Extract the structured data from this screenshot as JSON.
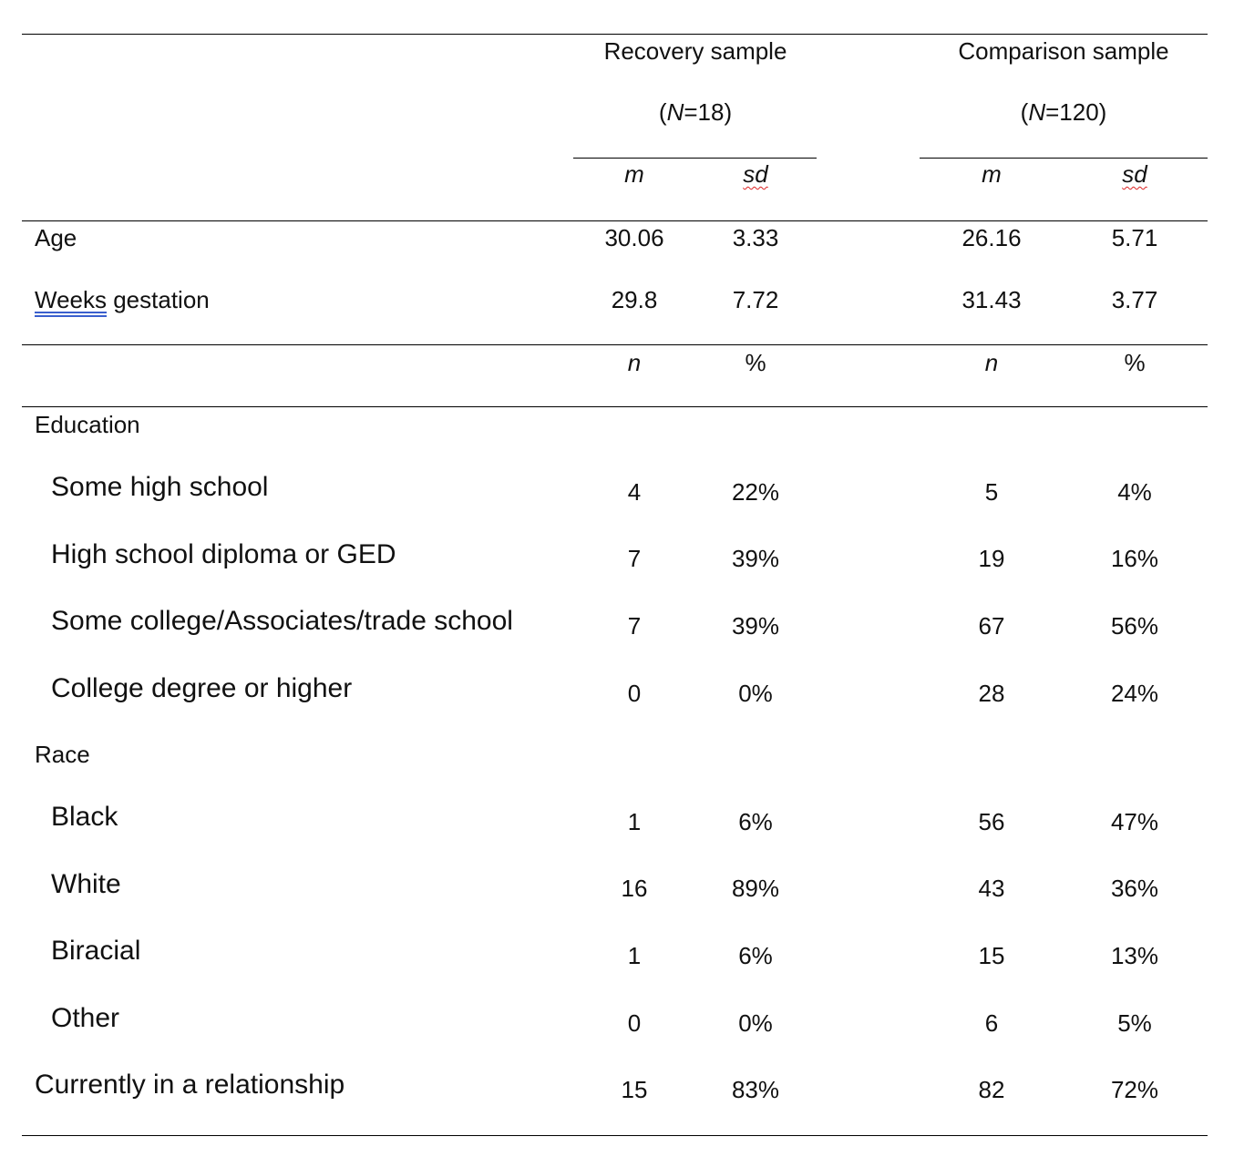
{
  "groups": [
    {
      "name": "Recovery sample",
      "n_label": "(N=18)",
      "n_prefix": "(",
      "n_letter": "N",
      "n_rest": "=18)"
    },
    {
      "name": "Comparison sample",
      "n_label": "(N=120)",
      "n_prefix": "(",
      "n_letter": "N",
      "n_rest": "=120)"
    }
  ],
  "subheaders": {
    "continuous": {
      "mean": "m",
      "sd": "sd"
    },
    "categorical": {
      "count": "n",
      "percent": "%"
    }
  },
  "continuous_rows": [
    {
      "label": "Age",
      "recovery_m": "30.06",
      "recovery_sd": "3.33",
      "comparison_m": "26.16",
      "comparison_sd": "5.71"
    },
    {
      "label_part1": "Weeks",
      "label_part2": " gestation",
      "label": "Weeks gestation",
      "recovery_m": "29.8",
      "recovery_sd": "7.72",
      "comparison_m": "31.43",
      "comparison_sd": "3.77"
    }
  ],
  "sections": [
    {
      "label": "Education",
      "rows": [
        {
          "label": "Some high school",
          "recovery_n": "4",
          "recovery_pct": "22%",
          "comparison_n": "5",
          "comparison_pct": "4%"
        },
        {
          "label": "High school diploma or GED",
          "recovery_n": "7",
          "recovery_pct": "39%",
          "comparison_n": "19",
          "comparison_pct": "16%"
        },
        {
          "label": "Some college/Associates/trade school",
          "recovery_n": "7",
          "recovery_pct": "39%",
          "comparison_n": "67",
          "comparison_pct": "56%"
        },
        {
          "label": "College degree or higher",
          "recovery_n": "0",
          "recovery_pct": "0%",
          "comparison_n": "28",
          "comparison_pct": "24%"
        }
      ]
    },
    {
      "label": "Race",
      "rows": [
        {
          "label": "Black",
          "recovery_n": "1",
          "recovery_pct": "6%",
          "comparison_n": "56",
          "comparison_pct": "47%"
        },
        {
          "label": "White",
          "recovery_n": "16",
          "recovery_pct": "89%",
          "comparison_n": "43",
          "comparison_pct": "36%"
        },
        {
          "label": "Biracial",
          "recovery_n": "1",
          "recovery_pct": "6%",
          "comparison_n": "15",
          "comparison_pct": "13%"
        },
        {
          "label": "Other",
          "recovery_n": "0",
          "recovery_pct": "0%",
          "comparison_n": "6",
          "comparison_pct": "5%"
        }
      ]
    }
  ],
  "relationship_row": {
    "label": "Currently in a relationship",
    "recovery_n": "15",
    "recovery_pct": "83%",
    "comparison_n": "82",
    "comparison_pct": "72%"
  }
}
